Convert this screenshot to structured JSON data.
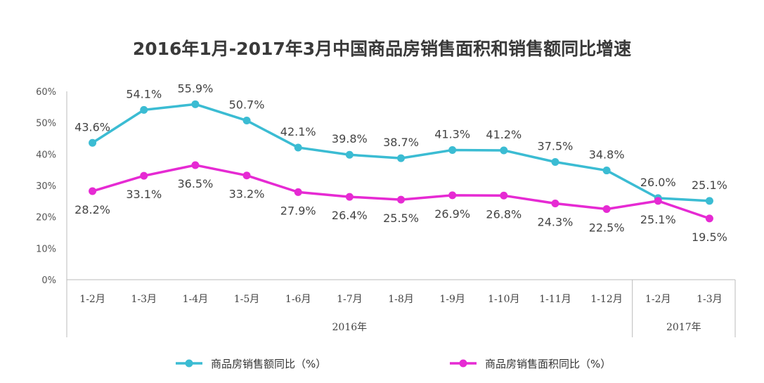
{
  "chart_data": {
    "type": "line",
    "title": "2016年1月-2017年3月中国商品房销售面积和销售额同比增速",
    "ylim": [
      0,
      60
    ],
    "yticks": [
      "0%",
      "10%",
      "20%",
      "30%",
      "40%",
      "50%",
      "60%"
    ],
    "categories": [
      "1-2月",
      "1-3月",
      "1-4月",
      "1-5月",
      "1-6月",
      "1-7月",
      "1-8月",
      "1-9月",
      "1-10月",
      "1-11月",
      "1-12月",
      "1-2月",
      "1-3月"
    ],
    "groups": [
      {
        "label": "2016年",
        "count": 11
      },
      {
        "label": "2017年",
        "count": 2
      }
    ],
    "series": [
      {
        "name": "商品房销售额同比（%）",
        "color": "#3bbcd3",
        "values": [
          43.6,
          54.1,
          55.9,
          50.7,
          42.1,
          39.8,
          38.7,
          41.3,
          41.2,
          37.5,
          34.8,
          26.0,
          25.1
        ],
        "labels": [
          "43.6%",
          "54.1%",
          "55.9%",
          "50.7%",
          "42.1%",
          "39.8%",
          "38.7%",
          "41.3%",
          "41.2%",
          "37.5%",
          "34.8%",
          "26.0%",
          "25.1%"
        ]
      },
      {
        "name": "商品房销售面积同比（%）",
        "color": "#e62ad3",
        "values": [
          28.2,
          33.1,
          36.5,
          33.2,
          27.9,
          26.4,
          25.5,
          26.9,
          26.8,
          24.3,
          22.5,
          25.1,
          19.5
        ],
        "labels": [
          "28.2%",
          "33.1%",
          "36.5%",
          "33.2%",
          "27.9%",
          "26.4%",
          "25.5%",
          "26.9%",
          "26.8%",
          "24.3%",
          "22.5%",
          "25.1%",
          "19.5%"
        ]
      }
    ],
    "legend_position": "bottom",
    "grid": false
  }
}
